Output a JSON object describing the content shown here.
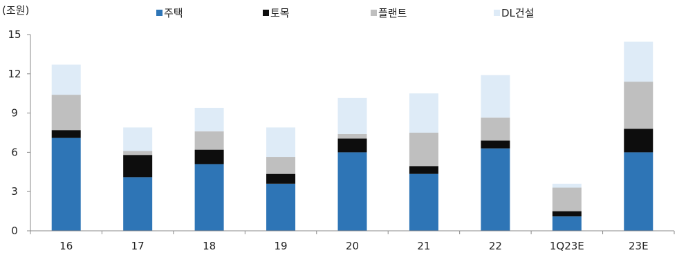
{
  "chart_data": {
    "type": "bar",
    "stacked": true,
    "unit_label": "(조원)",
    "categories": [
      "16",
      "17",
      "18",
      "19",
      "20",
      "21",
      "22",
      "1Q23E",
      "23E"
    ],
    "series": [
      {
        "name": "주택",
        "color": "#2e75b6",
        "values": [
          7.1,
          4.1,
          5.1,
          3.6,
          6.0,
          4.35,
          6.3,
          1.1,
          6.0
        ]
      },
      {
        "name": "토목",
        "color": "#0d0d0d",
        "values": [
          0.6,
          1.7,
          1.1,
          0.75,
          1.05,
          0.6,
          0.6,
          0.4,
          1.8
        ]
      },
      {
        "name": "플랜트",
        "color": "#bfbfbf",
        "values": [
          2.7,
          0.3,
          1.4,
          1.3,
          0.35,
          2.55,
          1.75,
          1.8,
          3.6
        ]
      },
      {
        "name": "DL건설",
        "color": "#deebf7",
        "values": [
          2.3,
          1.8,
          1.8,
          2.25,
          2.75,
          3.0,
          3.25,
          0.3,
          3.05
        ]
      }
    ],
    "y_ticks": [
      0,
      3,
      6,
      9,
      12,
      15
    ],
    "ylim": [
      0,
      15
    ],
    "grid": false,
    "legend_position": "top"
  }
}
